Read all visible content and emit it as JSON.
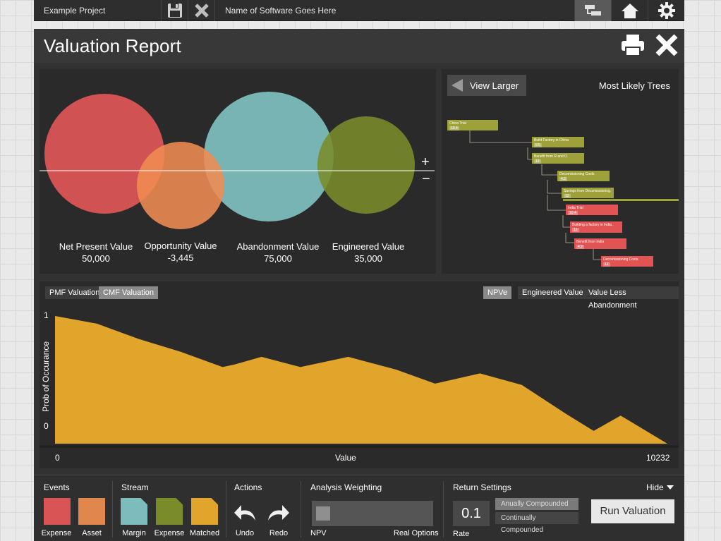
{
  "topbar": {
    "project_name": "Example Project",
    "software_name": "Name of Software Goes Here"
  },
  "modal": {
    "title": "Valuation Report"
  },
  "bubbles": [
    {
      "label": "Net Present Value",
      "value": "50,000",
      "color": "#d95454"
    },
    {
      "label": "Opportunity Value",
      "value": "-3,445",
      "color": "#ef8c52"
    },
    {
      "label": "Abandonment Value",
      "value": "75,000",
      "color": "#7cbcbc"
    },
    {
      "label": "Engineered Value",
      "value": "35,000",
      "color": "#7a8c2a"
    }
  ],
  "trees": {
    "view_larger_label": "View Larger",
    "title": "Most Likely Trees",
    "nodes": [
      {
        "label": "China Trial",
        "num": "10.4",
        "color": "g"
      },
      {
        "label": "Build Factory in China",
        "num": "9.5",
        "color": "g"
      },
      {
        "label": "Benefit from R and D.",
        "num": "12",
        "color": "g"
      },
      {
        "label": "Decomissioning Costs",
        "num": "4.2",
        "color": "g"
      },
      {
        "label": "Savings from Decomissioning.",
        "num": "12",
        "color": "g"
      },
      {
        "label": "India Trial",
        "num": "10.4",
        "color": "r"
      },
      {
        "label": "Building a factory in India.",
        "num": "12",
        "color": "r"
      },
      {
        "label": "Benefit from India",
        "num": "4.2",
        "color": "r"
      },
      {
        "label": "Decomissioning Costs",
        "num": "12",
        "color": "r"
      }
    ]
  },
  "distribution": {
    "toggles_left": [
      "PMF Valuation",
      "CMF Valuation"
    ],
    "toggles_right": [
      "NPVe",
      "Engineered Value",
      "Value Less Abandonment"
    ],
    "active_left": "CMF Valuation",
    "active_right": "NPVe"
  },
  "chart_data": {
    "type": "area",
    "ylabel": "Prob of Occurance",
    "xlabel": "Value",
    "x_ticks": [
      "0",
      "10232"
    ],
    "y_ticks": [
      "1",
      "0"
    ],
    "xlim": [
      0,
      10232
    ],
    "ylim": [
      0,
      1
    ],
    "color": "#e0a52a",
    "x": [
      0,
      700,
      1400,
      2100,
      2800,
      3000,
      3450,
      4100,
      4900,
      5700,
      6350,
      7100,
      7800,
      8550,
      9000,
      9450,
      10232
    ],
    "y": [
      1.0,
      0.94,
      0.82,
      0.72,
      0.6,
      0.62,
      0.68,
      0.6,
      0.68,
      0.58,
      0.47,
      0.55,
      0.46,
      0.23,
      0.1,
      0.22,
      0.0
    ]
  },
  "footer": {
    "events": {
      "title": "Events",
      "items": [
        {
          "label": "Expense",
          "color": "#d95454"
        },
        {
          "label": "Asset",
          "color": "#e0874d"
        }
      ]
    },
    "stream": {
      "title": "Stream",
      "items": [
        {
          "label": "Margin",
          "color": "#7cbcbc"
        },
        {
          "label": "Expense",
          "color": "#7a8c2a"
        },
        {
          "label": "Matched",
          "color": "#e0a52a"
        }
      ]
    },
    "actions": {
      "title": "Actions",
      "undo": "Undo",
      "redo": "Redo"
    },
    "weighting": {
      "title": "Analysis Weighting",
      "left": "NPV",
      "right": "Real Options"
    },
    "returns": {
      "title": "Return Settings",
      "rate_value": "0.1",
      "rate_label": "Rate",
      "annual": "Anually Compounded",
      "continual": "Continually Compounded"
    },
    "hide_label": "Hide",
    "run_label": "Run Valuation"
  }
}
